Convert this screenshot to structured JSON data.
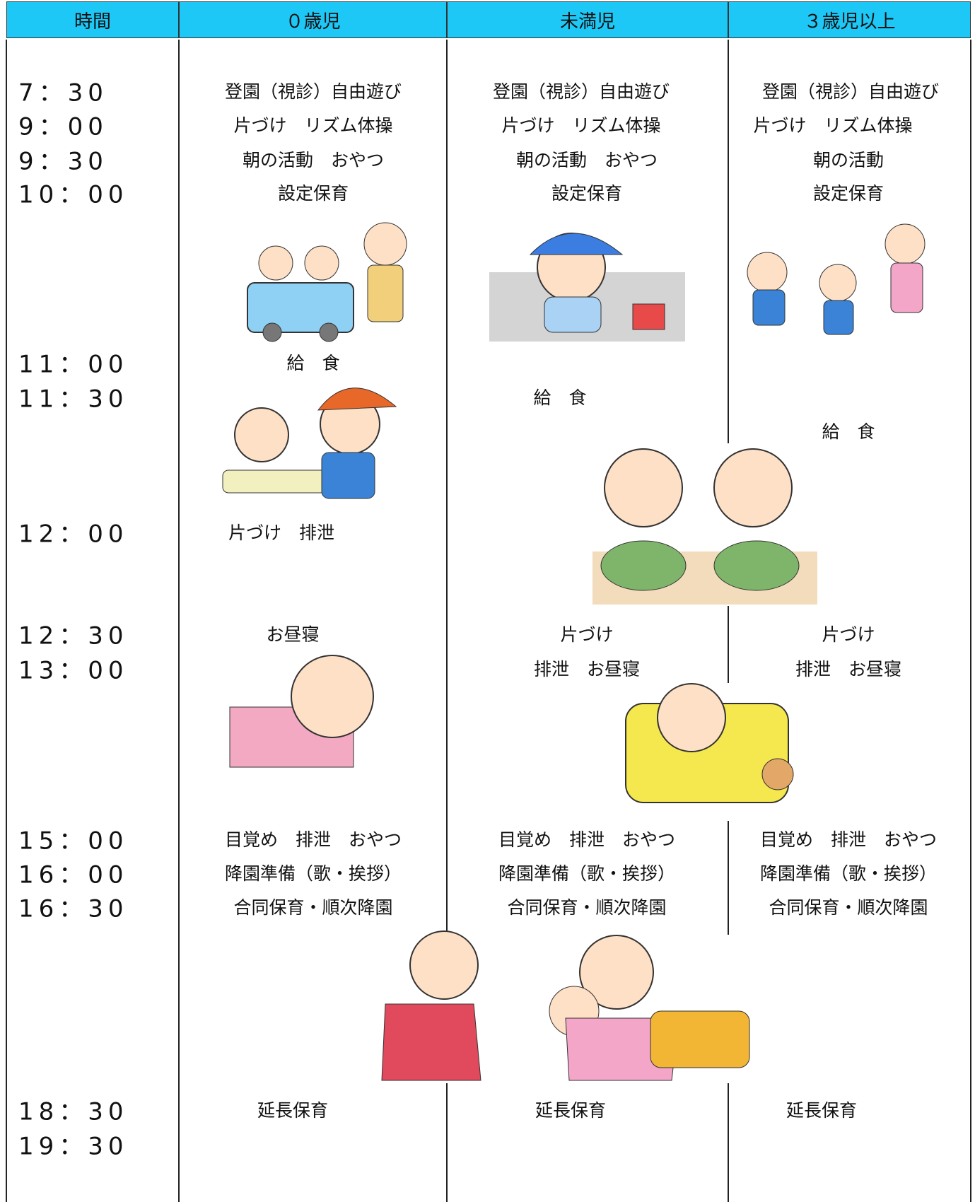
{
  "table": {
    "headers": [
      "時間",
      "０歳児",
      "未満児",
      "３歳児以上"
    ],
    "times": [
      "7：30",
      "9：00",
      "9：30",
      "10：00",
      "11：00",
      "11：30",
      "12：00",
      "12：30",
      "13：00",
      "15：00",
      "16：00",
      "16：30",
      "18：30",
      "19：30"
    ],
    "columns": [
      [
        "登園（視診）自由遊び",
        "片づけ　リズム体操",
        "朝の活動　おやつ",
        "設定保育",
        "給　食",
        "片づけ　排泄",
        "お昼寝",
        "目覚め　排泄　おやつ",
        "降園準備（歌・挨拶）",
        "合同保育・順次降園",
        "延長保育"
      ],
      [
        "登園（視診）自由遊び",
        "片づけ　リズム体操",
        "朝の活動　おやつ",
        "設定保育",
        "給　食",
        "片づけ",
        "排泄　お昼寝",
        "目覚め　排泄　おやつ",
        "降園準備（歌・挨拶）",
        "合同保育・順次降園",
        "延長保育"
      ],
      [
        "登園（視診）自由遊び",
        "片づけ　リズム体操",
        "朝の活動",
        "設定保育",
        "給　食",
        "片づけ",
        "排泄　お昼寝",
        "目覚め　排泄　おやつ",
        "降園準備（歌・挨拶）",
        "合同保育・順次降園",
        "延長保育"
      ]
    ]
  }
}
